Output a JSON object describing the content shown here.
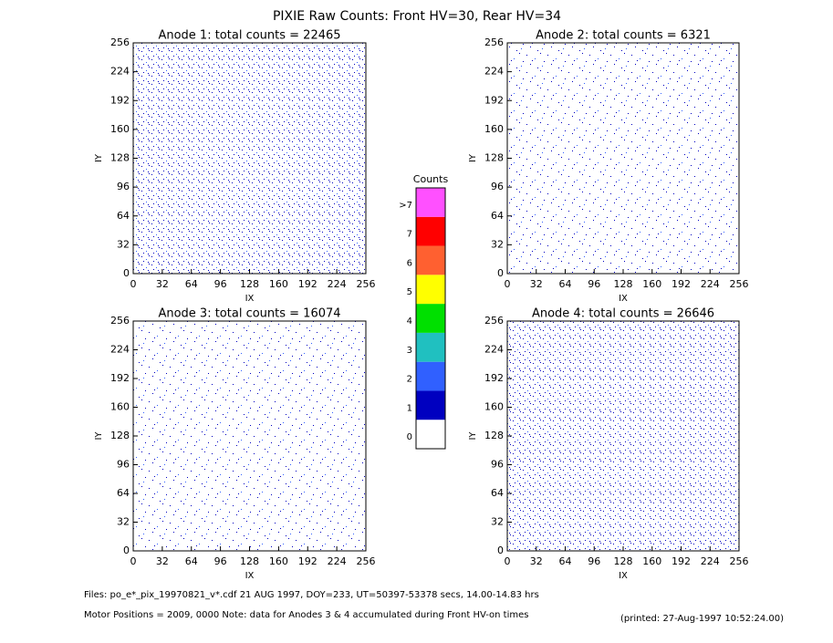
{
  "title": "PIXIE Raw Counts:  Front HV=30, Rear HV=34",
  "chart_data": [
    {
      "type": "heatmap",
      "title": "Anode 1: total counts = 22465",
      "xlabel": "IX",
      "ylabel": "IY",
      "xlim": [
        0,
        256
      ],
      "ylim": [
        0,
        256
      ],
      "xticks": [
        0,
        32,
        64,
        96,
        128,
        160,
        192,
        224,
        256
      ],
      "yticks": [
        0,
        32,
        64,
        96,
        128,
        160,
        192,
        224,
        256
      ]
    },
    {
      "type": "heatmap",
      "title": "Anode 2: total counts = 6321",
      "xlabel": "IX",
      "ylabel": "IY",
      "xlim": [
        0,
        256
      ],
      "ylim": [
        0,
        256
      ],
      "xticks": [
        0,
        32,
        64,
        96,
        128,
        160,
        192,
        224,
        256
      ],
      "yticks": [
        0,
        32,
        64,
        96,
        128,
        160,
        192,
        224,
        256
      ]
    },
    {
      "type": "heatmap",
      "title": "Anode 3: total counts = 16074",
      "xlabel": "IX",
      "ylabel": "IY",
      "xlim": [
        0,
        256
      ],
      "ylim": [
        0,
        256
      ],
      "xticks": [
        0,
        32,
        64,
        96,
        128,
        160,
        192,
        224,
        256
      ],
      "yticks": [
        0,
        32,
        64,
        96,
        128,
        160,
        192,
        224,
        256
      ]
    },
    {
      "type": "heatmap",
      "title": "Anode 4: total counts = 26646",
      "xlabel": "IX",
      "ylabel": "IY",
      "xlim": [
        0,
        256
      ],
      "ylim": [
        0,
        256
      ],
      "xticks": [
        0,
        32,
        64,
        96,
        128,
        160,
        192,
        224,
        256
      ],
      "yticks": [
        0,
        32,
        64,
        96,
        128,
        160,
        192,
        224,
        256
      ]
    }
  ],
  "colorbar": {
    "title": "Counts",
    "ticks": [
      0,
      1,
      2,
      3,
      4,
      5,
      6,
      7,
      {
        "value": 8,
        "label": ">7"
      }
    ],
    "colors": [
      "#ffffff",
      "#0000c0",
      "#3060ff",
      "#20c0c0",
      "#00e000",
      "#ffff00",
      "#ff6030",
      "#ff0000",
      "#ff50ff"
    ]
  },
  "footer": {
    "files": "Files: po_e*_pix_19970821_v*.cdf     21 AUG 1997, DOY=233, UT=50397-53378 secs, 14.00-14.83 hrs",
    "motor": "Motor Positions = 2009, 0000    Note: data for Anodes 3 & 4 accumulated during Front HV-on times",
    "printed": "(printed: 27-Aug-1997 10:52:24.00)"
  }
}
